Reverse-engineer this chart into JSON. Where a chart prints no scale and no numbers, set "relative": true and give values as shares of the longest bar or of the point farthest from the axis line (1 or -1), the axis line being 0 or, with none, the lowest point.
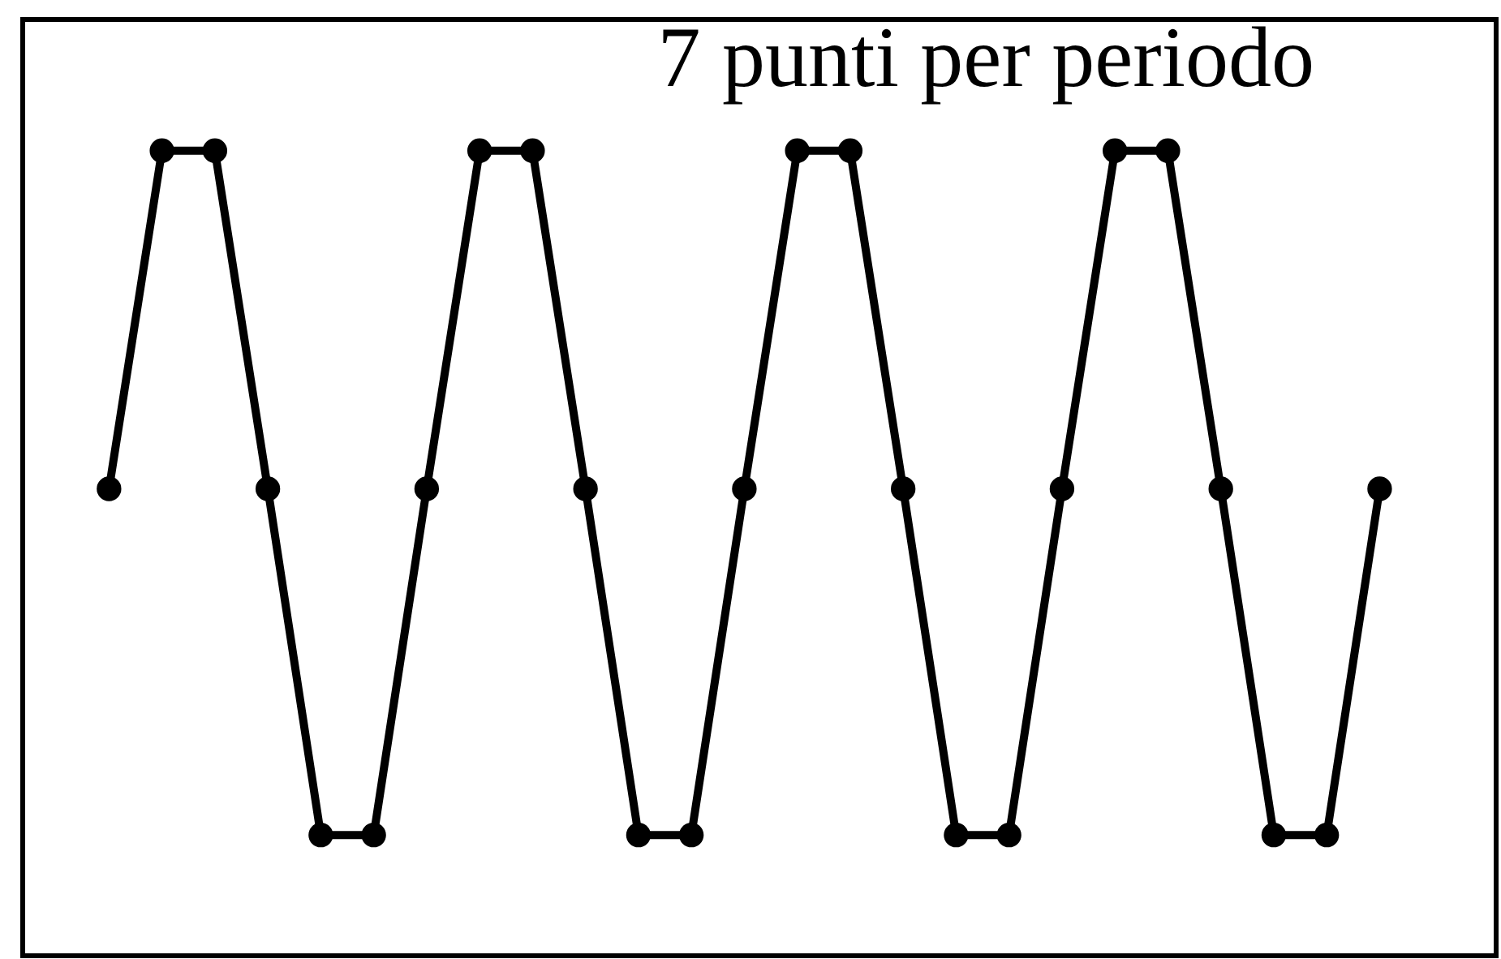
{
  "chart_data": {
    "type": "line",
    "title": "7 punti per periodo",
    "relative": true,
    "marker": "circle",
    "line_style": "solid",
    "tick_labels": false,
    "categories": [
      null,
      null,
      null,
      null,
      null,
      null,
      null,
      null,
      null,
      null,
      null,
      null,
      null,
      null,
      null,
      null,
      null,
      null,
      null,
      null,
      null,
      null,
      null,
      null,
      null
    ],
    "series": [
      {
        "color": "#000000",
        "values": [
          0.58,
          1,
          1,
          0.58,
          0.15,
          0.15,
          0.58,
          1,
          1,
          0.58,
          0.15,
          0.15,
          0.58,
          1,
          1,
          0.58,
          0.15,
          0.15,
          0.58,
          1,
          1,
          0.58,
          0.15,
          0.15,
          0.58
        ]
      }
    ]
  }
}
